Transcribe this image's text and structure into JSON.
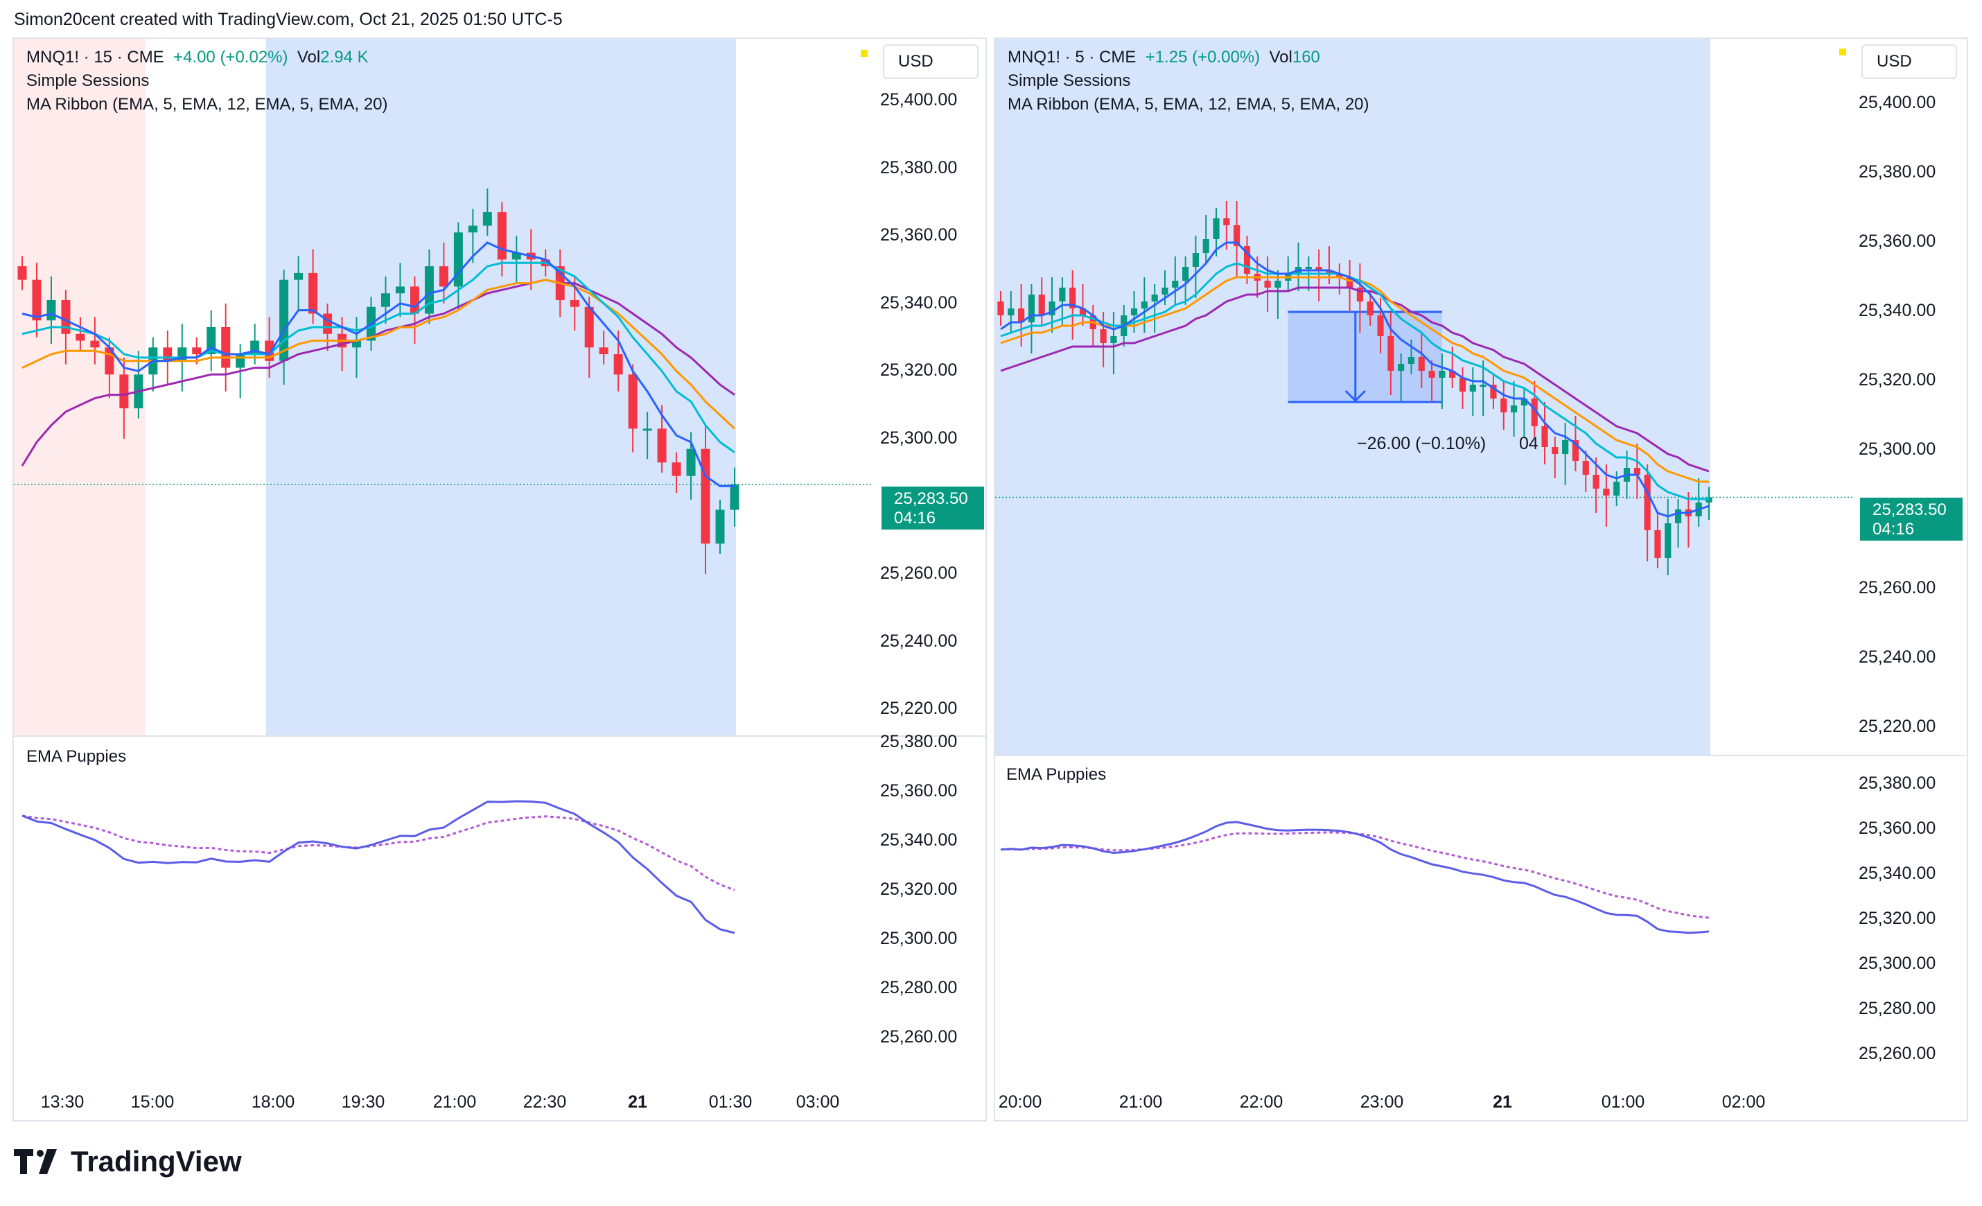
{
  "header": {
    "text": "Simon20cent created with TradingView.com, Oct 21, 2025 01:50 UTC-5"
  },
  "brand": {
    "name": "TradingView"
  },
  "colors": {
    "bull": "#089981",
    "bear": "#f23645",
    "ema5": "#2962ff",
    "ema12": "#00bcd4",
    "ema5b": "#ff9800",
    "ema20": "#9c27b0",
    "puppy_fast": "#5b5ce8",
    "puppy_slow": "#b35cd6",
    "session_blue": "#d6e5fb",
    "session_pink": "#fdeceb"
  },
  "charts": [
    {
      "legend": {
        "symbol": "MNQ1! · 15 · CME",
        "change": "+4.00 (+0.02%)",
        "vol_label": "Vol",
        "vol_value": "2.94 K",
        "line2": "Simple Sessions",
        "line3": "MA Ribbon (EMA, 5, EMA, 12, EMA, 5, EMA, 20)"
      },
      "currency": "USD",
      "price_axis": [
        "25,400.00",
        "25,380.00",
        "25,360.00",
        "25,340.00",
        "25,320.00",
        "25,300.00",
        "25,260.00",
        "25,240.00",
        "25,220.00"
      ],
      "last_price": "25,283.50",
      "countdown": "04:16",
      "sub_title": "EMA Puppies",
      "sub_axis": [
        "25,380.00",
        "25,360.00",
        "25,340.00",
        "25,320.00",
        "25,300.00",
        "25,280.00",
        "25,260.00"
      ],
      "time_axis": [
        {
          "t": "13:30",
          "bold": false
        },
        {
          "t": "15:00",
          "bold": false
        },
        {
          "t": "18:00",
          "bold": false
        },
        {
          "t": "19:30",
          "bold": false
        },
        {
          "t": "21:00",
          "bold": false
        },
        {
          "t": "22:30",
          "bold": false
        },
        {
          "t": "21",
          "bold": true
        },
        {
          "t": "01:30",
          "bold": false
        },
        {
          "t": "03:00",
          "bold": false
        }
      ]
    },
    {
      "legend": {
        "symbol": "MNQ1! · 5 · CME",
        "change": "+1.25 (+0.00%)",
        "vol_label": "Vol",
        "vol_value": "160",
        "line2": "Simple Sessions",
        "line3": "MA Ribbon (EMA, 5, EMA, 12, EMA, 5, EMA, 20)"
      },
      "currency": "USD",
      "price_axis": [
        "25,400.00",
        "25,380.00",
        "25,360.00",
        "25,340.00",
        "25,320.00",
        "25,300.00",
        "25,260.00",
        "25,240.00",
        "25,220.00"
      ],
      "last_price": "25,283.50",
      "countdown": "04:16",
      "measure_label": "−26.00 (−0.10%)",
      "measure_tail": "04",
      "sub_title": "EMA Puppies",
      "sub_axis": [
        "25,380.00",
        "25,360.00",
        "25,340.00",
        "25,320.00",
        "25,300.00",
        "25,280.00",
        "25,260.00"
      ],
      "time_axis": [
        {
          "t": "20:00",
          "bold": false
        },
        {
          "t": "21:00",
          "bold": false
        },
        {
          "t": "22:00",
          "bold": false
        },
        {
          "t": "23:00",
          "bold": false
        },
        {
          "t": "21",
          "bold": true
        },
        {
          "t": "01:00",
          "bold": false
        },
        {
          "t": "02:00",
          "bold": false
        }
      ]
    }
  ],
  "chart_data": [
    {
      "type": "candlestick",
      "title": "MNQ1! · 15 · CME",
      "ylim": [
        25215,
        25405
      ],
      "last_price": 25283.5,
      "closes": [
        25344,
        25332,
        25338,
        25328,
        25326,
        25324,
        25316,
        25306,
        25316,
        25324,
        25320,
        25324,
        25322,
        25330,
        25318,
        25322,
        25326,
        25320,
        25344,
        25346,
        25334,
        25328,
        25324,
        25326,
        25336,
        25340,
        25342,
        25334,
        25348,
        25342,
        25358,
        25360,
        25364,
        25350,
        25352,
        25350,
        25348,
        25338,
        25336,
        25324,
        25322,
        25316,
        25300,
        25300,
        25290,
        25286,
        25294,
        25266,
        25276,
        25283.5
      ],
      "ema5": [
        25334,
        25333,
        25334,
        25332,
        25330,
        25328,
        25324,
        25318,
        25317,
        25320,
        25320,
        25321,
        25321,
        25324,
        25322,
        25322,
        25323,
        25322,
        25329,
        25335,
        25335,
        25332,
        25330,
        25328,
        25331,
        25334,
        25337,
        25336,
        25340,
        25341,
        25346,
        25351,
        25355,
        25353,
        25352,
        25351,
        25350,
        25346,
        25342,
        25336,
        25331,
        25326,
        25317,
        25311,
        25304,
        25298,
        25296,
        25286,
        25283,
        25283
      ],
      "ema12": [
        25328,
        25329,
        25330,
        25330,
        25329,
        25328,
        25326,
        25322,
        25321,
        25321,
        25321,
        25321,
        25321,
        25323,
        25322,
        25322,
        25322,
        25322,
        25326,
        25329,
        25330,
        25330,
        25330,
        25329,
        25330,
        25332,
        25334,
        25334,
        25337,
        25338,
        25341,
        25344,
        25348,
        25349,
        25349,
        25349,
        25349,
        25347,
        25345,
        25341,
        25337,
        25333,
        25327,
        25322,
        25317,
        25311,
        25308,
        25301,
        25296,
        25293
      ],
      "ema5b": [
        25318,
        25320,
        25322,
        25323,
        25323,
        25323,
        25322,
        25320,
        25320,
        25320,
        25320,
        25320,
        25320,
        25321,
        25321,
        25321,
        25321,
        25321,
        25323,
        25325,
        25326,
        25326,
        25326,
        25326,
        25327,
        25328,
        25330,
        25330,
        25332,
        25333,
        25335,
        25338,
        25341,
        25342,
        25343,
        25343,
        25344,
        25343,
        25342,
        25340,
        25337,
        25334,
        25330,
        25326,
        25322,
        25317,
        25313,
        25308,
        25304,
        25300
      ],
      "ema20": [
        25289,
        25296,
        25301,
        25305,
        25307,
        25309,
        25310,
        25310,
        25311,
        25312,
        25313,
        25314,
        25315,
        25316,
        25316,
        25317,
        25318,
        25318,
        25320,
        25322,
        25323,
        25324,
        25325,
        25326,
        25327,
        25329,
        25330,
        25331,
        25333,
        25334,
        25336,
        25338,
        25340,
        25341,
        25342,
        25343,
        25344,
        25343,
        25343,
        25341,
        25339,
        25337,
        25334,
        25331,
        25328,
        25324,
        25321,
        25317,
        25313,
        25310
      ]
    },
    {
      "type": "candlestick",
      "title": "MNQ1! · 5 · CME",
      "ylim": [
        25215,
        25405
      ],
      "last_price": 25283.5,
      "measurement": {
        "delta": -26.0,
        "pct": -0.1
      },
      "closes": [
        25336,
        25338,
        25334,
        25342,
        25336,
        25340,
        25344,
        25338,
        25336,
        25332,
        25328,
        25330,
        25336,
        25338,
        25340,
        25342,
        25344,
        25346,
        25350,
        25354,
        25358,
        25364,
        25362,
        25356,
        25348,
        25346,
        25344,
        25346,
        25348,
        25350,
        25350,
        25349,
        25348,
        25347,
        25344,
        25340,
        25336,
        25330,
        25320,
        25322,
        25324,
        25320,
        25318,
        25320,
        25318,
        25314,
        25316,
        25316,
        25312,
        25308,
        25310,
        25312,
        25304,
        25298,
        25296,
        25300,
        25294,
        25290,
        25286,
        25284,
        25288,
        25292,
        25290,
        25274,
        25266,
        25276,
        25280,
        25278,
        25282,
        25283.5
      ],
      "ema5": [
        25332,
        25334,
        25334,
        25336,
        25336,
        25337,
        25339,
        25339,
        25338,
        25336,
        25333,
        25332,
        25333,
        25335,
        25337,
        25339,
        25341,
        25343,
        25345,
        25348,
        25351,
        25355,
        25357,
        25357,
        25354,
        25351,
        25349,
        25348,
        25348,
        25349,
        25349,
        25349,
        25349,
        25348,
        25347,
        25345,
        25342,
        25338,
        25332,
        25329,
        25327,
        25325,
        25322,
        25321,
        25320,
        25318,
        25317,
        25317,
        25315,
        25313,
        25312,
        25312,
        25309,
        25305,
        25302,
        25301,
        25299,
        25296,
        25293,
        25290,
        25289,
        25290,
        25290,
        25285,
        25279,
        25278,
        25279,
        25279,
        25280,
        25281
      ],
      "ema12": [
        25330,
        25331,
        25332,
        25333,
        25333,
        25334,
        25335,
        25336,
        25336,
        25335,
        25334,
        25333,
        25333,
        25334,
        25335,
        25336,
        25337,
        25339,
        25340,
        25342,
        25345,
        25348,
        25350,
        25351,
        25350,
        25349,
        25348,
        25348,
        25348,
        25348,
        25348,
        25348,
        25348,
        25348,
        25347,
        25346,
        25344,
        25342,
        25338,
        25335,
        25333,
        25331,
        25328,
        25326,
        25325,
        25323,
        25322,
        25321,
        25319,
        25317,
        25316,
        25315,
        25313,
        25310,
        25308,
        25306,
        25304,
        25302,
        25299,
        25297,
        25295,
        25295,
        25294,
        25291,
        25287,
        25285,
        25284,
        25283,
        25283,
        25283
      ],
      "ema5b": [
        25328,
        25329,
        25330,
        25331,
        25331,
        25332,
        25333,
        25333,
        25334,
        25334,
        25333,
        25333,
        25333,
        25333,
        25334,
        25335,
        25336,
        25337,
        25338,
        25340,
        25342,
        25344,
        25346,
        25347,
        25347,
        25347,
        25347,
        25347,
        25347,
        25347,
        25347,
        25347,
        25347,
        25347,
        25346,
        25346,
        25345,
        25343,
        25340,
        25338,
        25336,
        25334,
        25332,
        25330,
        25328,
        25327,
        25325,
        25324,
        25322,
        25320,
        25319,
        25318,
        25316,
        25314,
        25312,
        25310,
        25308,
        25306,
        25304,
        25302,
        25300,
        25299,
        25298,
        25296,
        25293,
        25291,
        25290,
        25289,
        25288,
        25288
      ],
      "ema20": [
        25320,
        25321,
        25322,
        25323,
        25324,
        25325,
        25326,
        25327,
        25327,
        25327,
        25327,
        25327,
        25328,
        25328,
        25329,
        25330,
        25331,
        25332,
        25333,
        25335,
        25336,
        25338,
        25340,
        25341,
        25342,
        25342,
        25343,
        25343,
        25343,
        25344,
        25344,
        25344,
        25344,
        25344,
        25344,
        25343,
        25343,
        25342,
        25340,
        25339,
        25337,
        25336,
        25334,
        25333,
        25331,
        25330,
        25328,
        25327,
        25326,
        25324,
        25323,
        25322,
        25320,
        25318,
        25316,
        25314,
        25312,
        25310,
        25308,
        25306,
        25304,
        25303,
        25302,
        25300,
        25298,
        25296,
        25295,
        25293,
        25292,
        25291
      ]
    }
  ]
}
